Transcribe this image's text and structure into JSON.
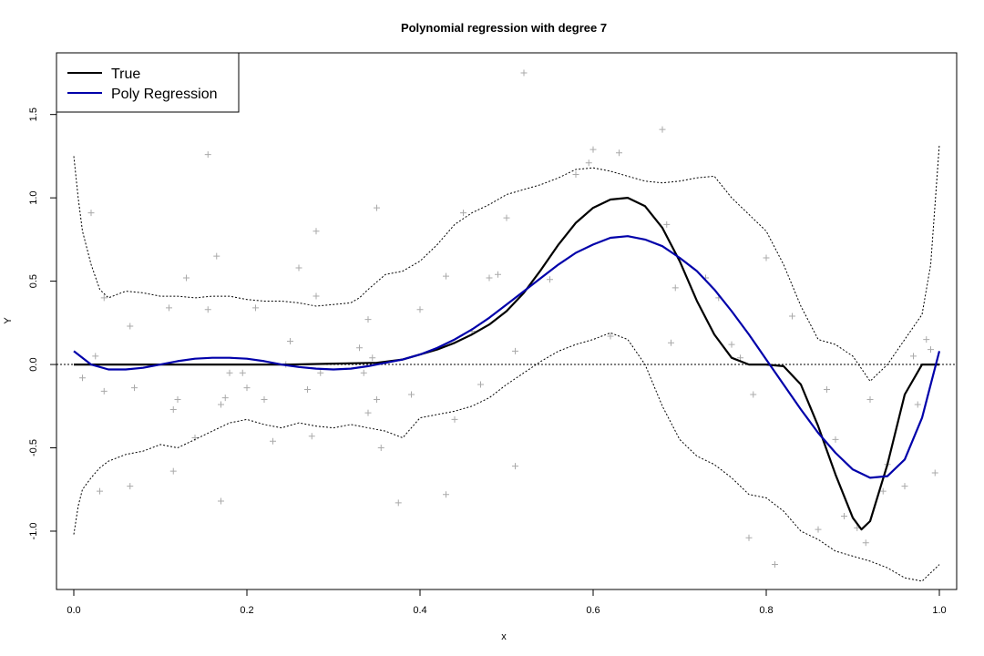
{
  "chart_data": {
    "type": "line",
    "title": "Polynomial regression with degree 7",
    "xlabel": "x",
    "ylabel": "Y",
    "xlim": [
      -0.02,
      1.02
    ],
    "ylim": [
      -1.35,
      1.87
    ],
    "x_ticks": [
      0.0,
      0.2,
      0.4,
      0.6,
      0.8,
      1.0
    ],
    "x_tick_labels": [
      "0.0",
      "0.2",
      "0.4",
      "0.6",
      "0.8",
      "1.0"
    ],
    "y_ticks": [
      -1.0,
      -0.5,
      0.0,
      0.5,
      1.0,
      1.5
    ],
    "y_tick_labels": [
      "-1.0",
      "-0.5",
      "0.0",
      "0.5",
      "1.0",
      "1.5"
    ],
    "grid": false,
    "legend_position": "top-left",
    "reference_line": {
      "y": 0.0,
      "style": "dotted",
      "color": "#000000"
    },
    "colors": {
      "true": "#000000",
      "poly": "#0000aa",
      "band": "#000000",
      "points": "#aaaaaa"
    },
    "series": [
      {
        "name": "True",
        "color": "#000000",
        "x": [
          0.0,
          0.05,
          0.1,
          0.15,
          0.2,
          0.25,
          0.3,
          0.35,
          0.38,
          0.4,
          0.42,
          0.44,
          0.46,
          0.48,
          0.5,
          0.52,
          0.54,
          0.56,
          0.58,
          0.6,
          0.62,
          0.64,
          0.66,
          0.68,
          0.7,
          0.72,
          0.74,
          0.76,
          0.78,
          0.8,
          0.82,
          0.84,
          0.86,
          0.88,
          0.9,
          0.91,
          0.92,
          0.94,
          0.96,
          0.98,
          1.0
        ],
        "y": [
          0.0,
          0.0,
          0.0,
          0.0,
          0.0,
          0.0,
          0.005,
          0.01,
          0.03,
          0.06,
          0.09,
          0.13,
          0.18,
          0.24,
          0.32,
          0.43,
          0.57,
          0.72,
          0.85,
          0.94,
          0.99,
          1.0,
          0.95,
          0.82,
          0.62,
          0.38,
          0.18,
          0.04,
          0.0,
          0.0,
          -0.01,
          -0.12,
          -0.37,
          -0.66,
          -0.92,
          -0.99,
          -0.94,
          -0.6,
          -0.18,
          0.0,
          0.0
        ]
      },
      {
        "name": "Poly Regression",
        "color": "#0000aa",
        "x": [
          0.0,
          0.02,
          0.04,
          0.06,
          0.08,
          0.1,
          0.12,
          0.14,
          0.16,
          0.18,
          0.2,
          0.22,
          0.24,
          0.26,
          0.28,
          0.3,
          0.32,
          0.34,
          0.36,
          0.38,
          0.4,
          0.42,
          0.44,
          0.46,
          0.48,
          0.5,
          0.52,
          0.54,
          0.56,
          0.58,
          0.6,
          0.62,
          0.64,
          0.66,
          0.68,
          0.7,
          0.72,
          0.74,
          0.76,
          0.78,
          0.8,
          0.82,
          0.84,
          0.86,
          0.88,
          0.9,
          0.92,
          0.94,
          0.96,
          0.98,
          1.0
        ],
        "y": [
          0.08,
          0.0,
          -0.03,
          -0.03,
          -0.02,
          0.0,
          0.02,
          0.035,
          0.04,
          0.04,
          0.035,
          0.02,
          0.0,
          -0.015,
          -0.025,
          -0.03,
          -0.025,
          -0.01,
          0.01,
          0.03,
          0.06,
          0.1,
          0.15,
          0.21,
          0.28,
          0.36,
          0.44,
          0.52,
          0.6,
          0.67,
          0.72,
          0.76,
          0.77,
          0.75,
          0.71,
          0.64,
          0.56,
          0.45,
          0.32,
          0.18,
          0.03,
          -0.12,
          -0.27,
          -0.41,
          -0.53,
          -0.63,
          -0.68,
          -0.67,
          -0.57,
          -0.32,
          0.08
        ]
      }
    ],
    "confidence_band": {
      "upper": {
        "x": [
          0.0,
          0.005,
          0.01,
          0.02,
          0.03,
          0.04,
          0.05,
          0.06,
          0.08,
          0.1,
          0.12,
          0.14,
          0.16,
          0.18,
          0.2,
          0.22,
          0.24,
          0.26,
          0.28,
          0.3,
          0.32,
          0.33,
          0.34,
          0.36,
          0.38,
          0.4,
          0.42,
          0.44,
          0.46,
          0.48,
          0.5,
          0.52,
          0.54,
          0.56,
          0.58,
          0.6,
          0.62,
          0.64,
          0.66,
          0.68,
          0.7,
          0.72,
          0.74,
          0.76,
          0.78,
          0.8,
          0.82,
          0.84,
          0.86,
          0.88,
          0.9,
          0.92,
          0.94,
          0.96,
          0.98,
          0.99,
          1.0
        ],
        "y": [
          1.25,
          1.0,
          0.8,
          0.6,
          0.45,
          0.4,
          0.42,
          0.44,
          0.43,
          0.41,
          0.41,
          0.4,
          0.41,
          0.41,
          0.39,
          0.38,
          0.38,
          0.37,
          0.35,
          0.36,
          0.37,
          0.4,
          0.45,
          0.54,
          0.56,
          0.62,
          0.72,
          0.84,
          0.91,
          0.96,
          1.02,
          1.05,
          1.08,
          1.12,
          1.17,
          1.18,
          1.16,
          1.13,
          1.1,
          1.09,
          1.1,
          1.12,
          1.13,
          1.0,
          0.9,
          0.8,
          0.6,
          0.35,
          0.15,
          0.12,
          0.05,
          -0.1,
          0.0,
          0.15,
          0.3,
          0.6,
          1.32
        ]
      },
      "lower": {
        "x": [
          0.0,
          0.005,
          0.01,
          0.02,
          0.03,
          0.04,
          0.06,
          0.08,
          0.1,
          0.12,
          0.14,
          0.16,
          0.18,
          0.2,
          0.22,
          0.24,
          0.26,
          0.28,
          0.3,
          0.32,
          0.34,
          0.36,
          0.38,
          0.4,
          0.42,
          0.44,
          0.46,
          0.48,
          0.5,
          0.52,
          0.54,
          0.56,
          0.58,
          0.6,
          0.62,
          0.64,
          0.66,
          0.68,
          0.7,
          0.72,
          0.74,
          0.76,
          0.78,
          0.8,
          0.82,
          0.84,
          0.86,
          0.88,
          0.9,
          0.92,
          0.94,
          0.96,
          0.98,
          0.99,
          1.0
        ],
        "y": [
          -1.02,
          -0.85,
          -0.75,
          -0.68,
          -0.62,
          -0.58,
          -0.54,
          -0.52,
          -0.48,
          -0.5,
          -0.45,
          -0.4,
          -0.35,
          -0.33,
          -0.36,
          -0.38,
          -0.35,
          -0.37,
          -0.38,
          -0.36,
          -0.38,
          -0.4,
          -0.44,
          -0.32,
          -0.3,
          -0.28,
          -0.25,
          -0.2,
          -0.12,
          -0.05,
          0.02,
          0.08,
          0.12,
          0.15,
          0.19,
          0.15,
          0.0,
          -0.25,
          -0.45,
          -0.55,
          -0.6,
          -0.68,
          -0.78,
          -0.8,
          -0.88,
          -1.0,
          -1.05,
          -1.12,
          -1.15,
          -1.18,
          -1.22,
          -1.28,
          -1.3,
          -1.25,
          -1.2
        ]
      }
    },
    "scatter_points": [
      [
        0.01,
        -0.08
      ],
      [
        0.02,
        0.91
      ],
      [
        0.025,
        0.05
      ],
      [
        0.03,
        -0.76
      ],
      [
        0.035,
        0.4
      ],
      [
        0.035,
        -0.16
      ],
      [
        0.065,
        0.23
      ],
      [
        0.065,
        -0.73
      ],
      [
        0.07,
        -0.14
      ],
      [
        0.11,
        0.34
      ],
      [
        0.115,
        -0.27
      ],
      [
        0.115,
        -0.64
      ],
      [
        0.12,
        -0.21
      ],
      [
        0.13,
        0.52
      ],
      [
        0.14,
        -0.44
      ],
      [
        0.155,
        1.26
      ],
      [
        0.155,
        0.33
      ],
      [
        0.165,
        0.65
      ],
      [
        0.17,
        -0.82
      ],
      [
        0.17,
        -0.24
      ],
      [
        0.175,
        -0.2
      ],
      [
        0.18,
        -0.05
      ],
      [
        0.195,
        -0.05
      ],
      [
        0.2,
        -0.14
      ],
      [
        0.21,
        0.34
      ],
      [
        0.22,
        -0.21
      ],
      [
        0.23,
        -0.46
      ],
      [
        0.245,
        0.0
      ],
      [
        0.25,
        0.14
      ],
      [
        0.26,
        0.58
      ],
      [
        0.27,
        -0.15
      ],
      [
        0.275,
        -0.43
      ],
      [
        0.28,
        0.8
      ],
      [
        0.28,
        0.41
      ],
      [
        0.285,
        -0.05
      ],
      [
        0.33,
        0.1
      ],
      [
        0.335,
        -0.05
      ],
      [
        0.34,
        0.27
      ],
      [
        0.34,
        -0.29
      ],
      [
        0.345,
        0.04
      ],
      [
        0.35,
        0.94
      ],
      [
        0.35,
        -0.21
      ],
      [
        0.355,
        -0.5
      ],
      [
        0.375,
        -0.83
      ],
      [
        0.39,
        -0.18
      ],
      [
        0.4,
        0.33
      ],
      [
        0.43,
        0.53
      ],
      [
        0.43,
        -0.78
      ],
      [
        0.44,
        -0.33
      ],
      [
        0.45,
        0.91
      ],
      [
        0.46,
        0.2
      ],
      [
        0.47,
        -0.12
      ],
      [
        0.48,
        0.52
      ],
      [
        0.49,
        0.54
      ],
      [
        0.5,
        0.88
      ],
      [
        0.51,
        0.08
      ],
      [
        0.51,
        -0.61
      ],
      [
        0.52,
        1.75
      ],
      [
        0.55,
        0.51
      ],
      [
        0.58,
        1.14
      ],
      [
        0.595,
        1.21
      ],
      [
        0.6,
        1.29
      ],
      [
        0.62,
        0.17
      ],
      [
        0.63,
        1.27
      ],
      [
        0.68,
        1.41
      ],
      [
        0.685,
        0.84
      ],
      [
        0.69,
        0.13
      ],
      [
        0.695,
        0.46
      ],
      [
        0.73,
        0.52
      ],
      [
        0.745,
        0.4
      ],
      [
        0.76,
        0.12
      ],
      [
        0.77,
        0.04
      ],
      [
        0.78,
        -1.04
      ],
      [
        0.785,
        -0.18
      ],
      [
        0.8,
        0.64
      ],
      [
        0.81,
        -1.2
      ],
      [
        0.83,
        0.29
      ],
      [
        0.86,
        -0.99
      ],
      [
        0.87,
        -0.15
      ],
      [
        0.88,
        -0.45
      ],
      [
        0.89,
        -0.91
      ],
      [
        0.905,
        -0.98
      ],
      [
        0.915,
        -1.07
      ],
      [
        0.92,
        -0.21
      ],
      [
        0.935,
        -0.76
      ],
      [
        0.94,
        -0.6
      ],
      [
        0.96,
        -0.73
      ],
      [
        0.97,
        0.05
      ],
      [
        0.975,
        -0.24
      ],
      [
        0.985,
        0.15
      ],
      [
        0.99,
        0.09
      ],
      [
        0.995,
        -0.65
      ]
    ]
  }
}
